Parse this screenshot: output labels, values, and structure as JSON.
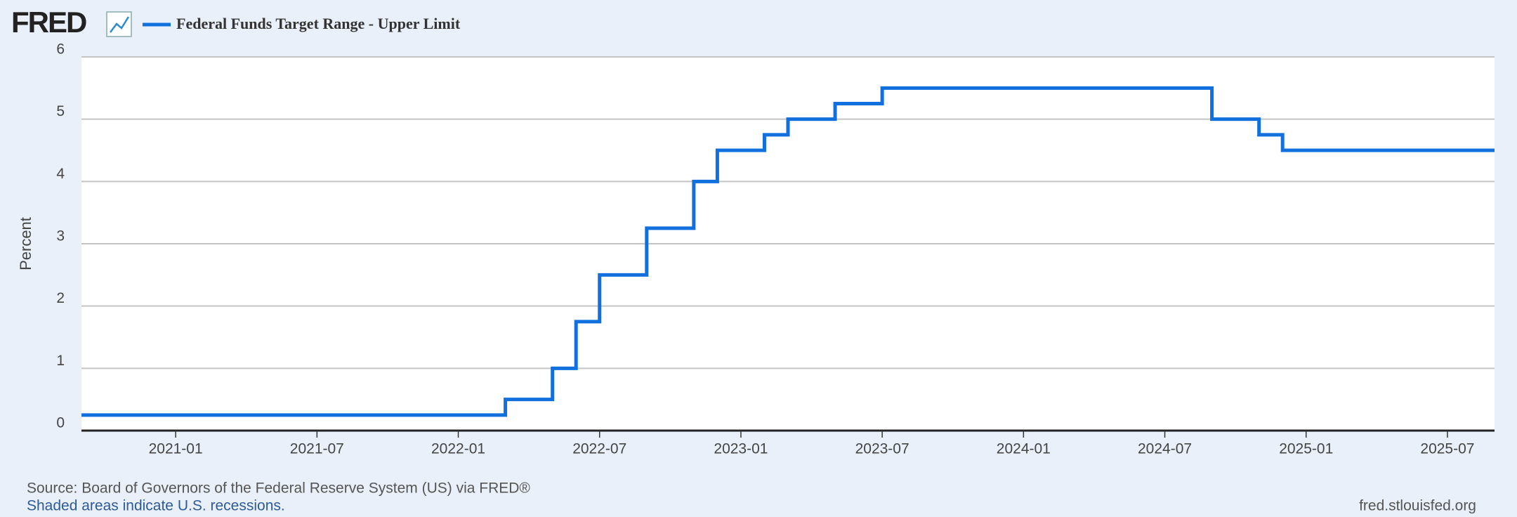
{
  "chart_data": {
    "type": "line",
    "step": true,
    "logo": "FRED",
    "y_label": "Percent",
    "source": "Source: Board of Governors of the Federal Reserve System (US) via FRED®",
    "note": "Shaded areas indicate U.S. recessions.",
    "site": "fred.stlouisfed.org",
    "x": [
      "2020-09",
      "2022-03",
      "2022-05",
      "2022-06",
      "2022-07",
      "2022-09",
      "2022-11",
      "2022-12",
      "2023-02",
      "2023-03",
      "2023-05",
      "2023-07",
      "2024-09",
      "2024-11",
      "2024-12",
      "2025-09"
    ],
    "series": [
      {
        "name": "Federal Funds Target Range - Upper Limit",
        "color": "#1170dd",
        "values": [
          0.25,
          0.5,
          1,
          1.75,
          2.5,
          3.25,
          4,
          4.5,
          4.75,
          5,
          5.25,
          5.5,
          5,
          4.75,
          4.5,
          4.5
        ]
      }
    ],
    "xlim": [
      "2020-09",
      "2025-09"
    ],
    "xticks": [
      "2021-01",
      "2021-07",
      "2022-01",
      "2022-07",
      "2023-01",
      "2023-07",
      "2024-01",
      "2024-07",
      "2025-01",
      "2025-07"
    ],
    "ylim": [
      0,
      6
    ],
    "yticks": [
      0,
      1,
      2,
      3,
      4,
      5,
      6
    ],
    "grid": true
  }
}
